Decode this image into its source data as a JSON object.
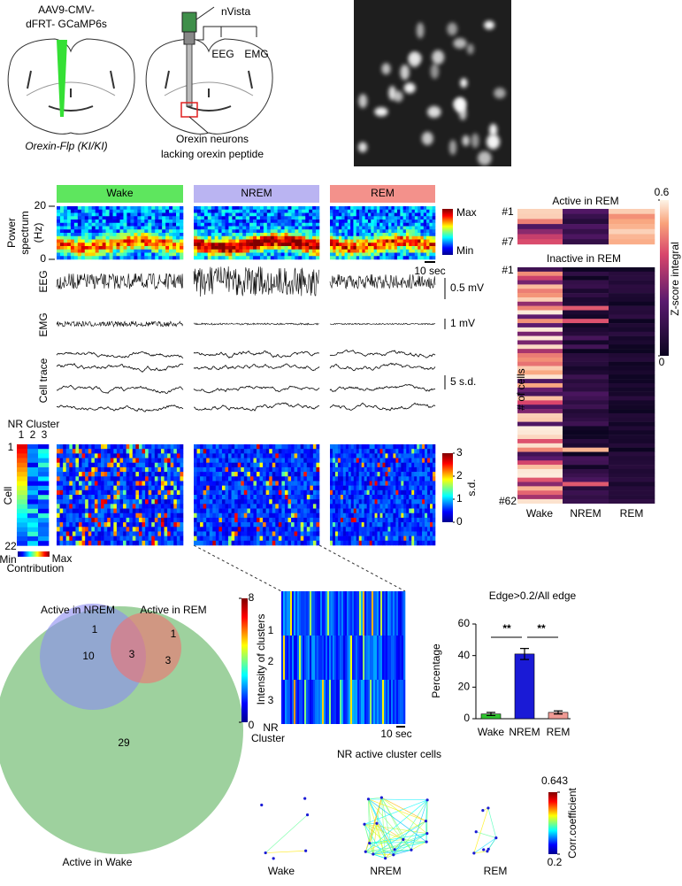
{
  "figure": {
    "injection": [
      "AAV9-CMV-",
      "dFRT- GCaMP6s"
    ],
    "mouse_line": "Orexin-Flp (KI/KI)",
    "device": "nVista",
    "device_eeg": "EEG",
    "device_emg": "EMG",
    "target": [
      "Orexin neurons",
      "lacking orexin peptide"
    ],
    "states": [
      "Wake",
      "NREM",
      "REM"
    ],
    "state_colors": [
      "#5ee65e",
      "#bab4f2",
      "#f3918b"
    ],
    "spectrum_label": [
      "Power",
      "spectrum",
      "(Hz)"
    ],
    "spectrum_yticks": [
      0,
      20
    ],
    "spectrum_ylim": [
      0,
      20
    ],
    "power_scale": [
      "Max",
      "Min"
    ],
    "time_scale": "10 sec",
    "trace_labels": {
      "eeg": "EEG",
      "emg": "EMG",
      "cell": "Cell trace"
    },
    "scale_bars": [
      "0.5 mV",
      "1 mV",
      "5 s.d."
    ],
    "nr_cluster": {
      "title": "NR Cluster",
      "ids": [
        "1",
        "2",
        "3"
      ],
      "ylabel": "Cell",
      "first": "1",
      "last": "22",
      "scale": [
        "Min",
        "Max"
      ],
      "scale_label": "Contribution"
    },
    "sd_scale": {
      "ticks": [
        0,
        1,
        2,
        3
      ],
      "label": "s.d."
    },
    "rem_heatmap": {
      "active": "Active in REM",
      "inactive": "Inactive in REM",
      "active_rows": [
        "#1",
        "#7"
      ],
      "inactive_rows": [
        "#1",
        "#62"
      ],
      "ylabel": "# of cells",
      "columns": [
        "Wake",
        "NREM",
        "REM"
      ],
      "column_colors": [
        "#2db52d",
        "#2020d0",
        "#e020e0"
      ],
      "scale_ticks": [
        0,
        0.6
      ],
      "scale_label": "Z-score integral"
    },
    "venn": {
      "sets": [
        {
          "name": "Active in NREM",
          "color": "#2a2ad0"
        },
        {
          "name": "Active in REM",
          "color": "#e020e0"
        },
        {
          "name": "Active in Wake",
          "color": "#2db52d"
        }
      ],
      "counts": {
        "nrem_only": 1,
        "nrem_wake": 10,
        "all": 3,
        "rem_only": 1,
        "rem_wake": 3,
        "wake_only": 29
      }
    },
    "clusters": {
      "ylabel": "Intensity of clusters",
      "ids": [
        "1",
        "2",
        "3"
      ],
      "scale_ticks": [
        0,
        8
      ],
      "xlabel": [
        "NR",
        "Cluster"
      ],
      "time_scale": "10 sec"
    },
    "bar_chart": {
      "title": "Edge>0.2/All edge",
      "ylabel": "Percentage",
      "categories": [
        "Wake",
        "NREM",
        "REM"
      ],
      "category_colors": [
        "#2db52d",
        "#2020d0",
        "#e020e0"
      ],
      "values": [
        3,
        41,
        4
      ],
      "errors": [
        1,
        3.5,
        1
      ],
      "colors": [
        "#2fc42f",
        "#1a1ad6",
        "#f09a94"
      ],
      "ylim": [
        0,
        60
      ],
      "yticks": [
        0,
        20,
        40,
        60
      ],
      "significance": [
        "**",
        "**"
      ]
    },
    "network": {
      "title": "NR active cluster cells",
      "states": [
        "Wake",
        "NREM",
        "REM"
      ],
      "state_colors": [
        "#2db52d",
        "#2020d0",
        "#e020e0"
      ],
      "scale_ticks": [
        0.2,
        0.643
      ],
      "scale_label": "Corr.coefficient"
    }
  }
}
